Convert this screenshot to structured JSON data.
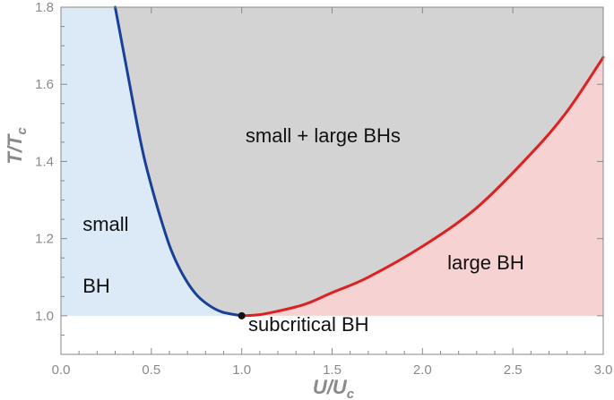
{
  "chart_data": {
    "type": "line",
    "xlim": [
      0.0,
      3.0
    ],
    "ylim": [
      0.9,
      1.8
    ],
    "x_ticks": [
      "0.0",
      "0.5",
      "1.0",
      "1.5",
      "2.0",
      "2.5",
      "3.0"
    ],
    "y_ticks": [
      "1.0",
      "1.2",
      "1.4",
      "1.6",
      "1.8"
    ],
    "xlabel": "U/U",
    "xlabel_sub": "c",
    "ylabel": "T/T",
    "ylabel_sub": "c",
    "grid": false,
    "series": [
      {
        "color": "#1a3f99",
        "points": [
          [
            0.3,
            1.8
          ],
          [
            0.34,
            1.7
          ],
          [
            0.38,
            1.6
          ],
          [
            0.42,
            1.5
          ],
          [
            0.46,
            1.41
          ],
          [
            0.51,
            1.32
          ],
          [
            0.56,
            1.24
          ],
          [
            0.61,
            1.17
          ],
          [
            0.67,
            1.11
          ],
          [
            0.74,
            1.06
          ],
          [
            0.81,
            1.03
          ],
          [
            0.89,
            1.01
          ],
          [
            1.0,
            1.0
          ]
        ]
      },
      {
        "color": "#e02020",
        "points": [
          [
            1.0,
            1.0
          ],
          [
            1.1,
            1.003
          ],
          [
            1.2,
            1.012
          ],
          [
            1.35,
            1.03
          ],
          [
            1.5,
            1.06
          ],
          [
            1.7,
            1.1
          ],
          [
            2.0,
            1.18
          ],
          [
            2.3,
            1.28
          ],
          [
            2.6,
            1.42
          ],
          [
            2.8,
            1.53
          ],
          [
            3.0,
            1.67
          ]
        ]
      }
    ],
    "critical_point": [
      1.0,
      1.0
    ],
    "regions": [
      {
        "label_lines": [
          "small",
          "BH"
        ],
        "fill": "#dce9f7"
      },
      {
        "label_lines": [
          "small + large BHs"
        ],
        "fill": "#d3d3d3"
      },
      {
        "label_lines": [
          "large BH"
        ],
        "fill": "#f6d2d2"
      },
      {
        "label_lines": [
          "subcritical BH"
        ],
        "fill": "#ffffff"
      }
    ],
    "annotation_positions": [
      {
        "region": 0,
        "x": [
          0.12,
          0.12
        ],
        "y": [
          1.22,
          1.06
        ]
      },
      {
        "region": 1,
        "x": [
          1.45
        ],
        "y": [
          1.45
        ]
      },
      {
        "region": 2,
        "x": [
          2.35
        ],
        "y": [
          1.12
        ]
      },
      {
        "region": 3,
        "x": [
          1.37
        ],
        "y": [
          0.96
        ]
      }
    ],
    "colors": {
      "axis": "#8a8a8a",
      "marker": "#111111"
    }
  }
}
